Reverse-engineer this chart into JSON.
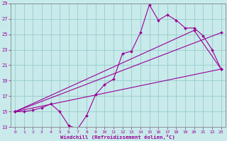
{
  "xlabel": "Windchill (Refroidissement éolien,°C)",
  "xlim": [
    -0.5,
    23.5
  ],
  "ylim": [
    13,
    29
  ],
  "xticks": [
    0,
    1,
    2,
    3,
    4,
    5,
    6,
    7,
    8,
    9,
    10,
    11,
    12,
    13,
    14,
    15,
    16,
    17,
    18,
    19,
    20,
    21,
    22,
    23
  ],
  "yticks": [
    13,
    15,
    17,
    19,
    21,
    23,
    25,
    27,
    29
  ],
  "bg_color": "#c8eaea",
  "line_color": "#990099",
  "grid_color": "#99cccc",
  "lines": [
    {
      "x": [
        0,
        1,
        2,
        3,
        4,
        5,
        6,
        7,
        8,
        9,
        10,
        11,
        12,
        13,
        14,
        15,
        16,
        17,
        18,
        19,
        20,
        21,
        22,
        23
      ],
      "y": [
        15,
        15,
        15.2,
        15.5,
        16.0,
        15.0,
        13.2,
        12.8,
        14.5,
        17.2,
        18.5,
        19.2,
        22.5,
        22.8,
        25.2,
        28.8,
        26.8,
        27.5,
        26.8,
        25.8,
        25.8,
        24.8,
        23.0,
        20.5
      ]
    },
    {
      "x": [
        0,
        20,
        23
      ],
      "y": [
        15,
        25.5,
        20.5
      ]
    },
    {
      "x": [
        0,
        23
      ],
      "y": [
        15,
        25.2
      ]
    },
    {
      "x": [
        0,
        23
      ],
      "y": [
        15,
        20.5
      ]
    }
  ]
}
